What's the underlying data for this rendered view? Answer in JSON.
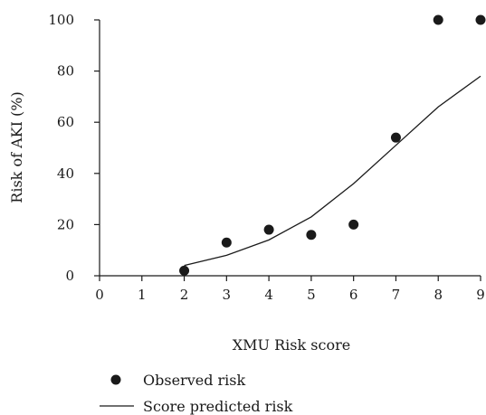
{
  "chart_data": {
    "type": "scatter",
    "xlabel": "XMU Risk score",
    "ylabel": "Risk of AKI (%)",
    "xlim": [
      0,
      9
    ],
    "ylim": [
      0,
      100
    ],
    "x_ticks": [
      "0",
      "1",
      "2",
      "3",
      "4",
      "5",
      "6",
      "7",
      "8",
      "9"
    ],
    "y_ticks": [
      "0",
      "20",
      "40",
      "60",
      "80",
      "100"
    ],
    "grid": false,
    "legend_position": "bottom-left",
    "series": [
      {
        "name": "Observed risk",
        "kind": "scatter",
        "color": "#1a1a1a",
        "x": [
          2,
          3,
          4,
          5,
          6,
          7,
          8,
          9
        ],
        "y": [
          2,
          13,
          18,
          16,
          20,
          54,
          100,
          100
        ]
      },
      {
        "name": "Score predicted risk",
        "kind": "line",
        "color": "#1a1a1a",
        "x": [
          2,
          3,
          4,
          5,
          6,
          7,
          8,
          9
        ],
        "y": [
          4,
          8,
          14,
          23,
          36,
          51,
          66,
          78
        ]
      }
    ]
  }
}
